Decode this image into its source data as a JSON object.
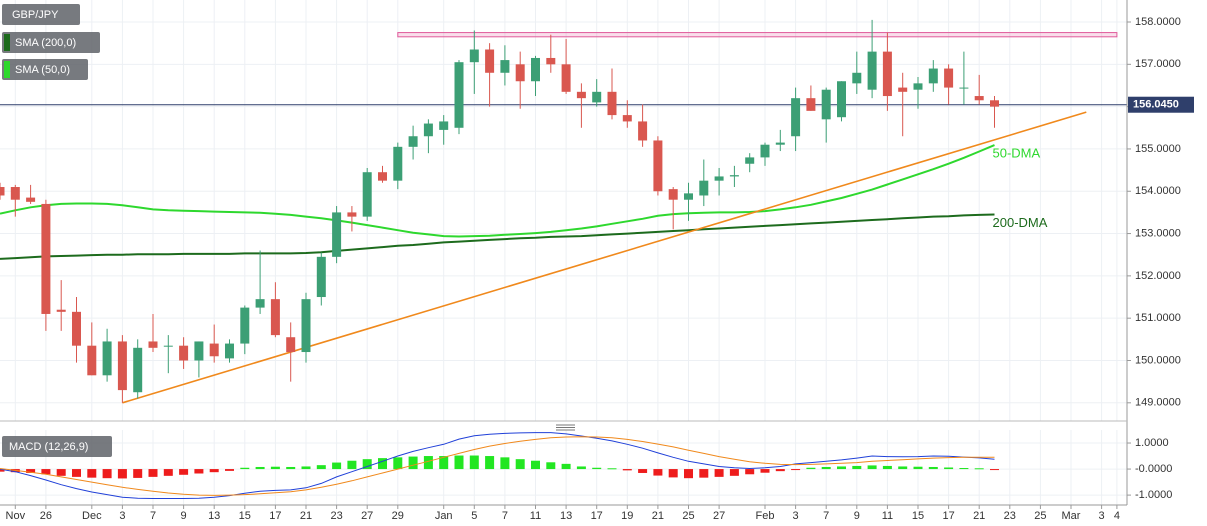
{
  "chart_data": {
    "type": "candlestick",
    "symbol": "GBP/JPY",
    "categories": [
      null,
      "Nov",
      null,
      "26",
      null,
      null,
      "Dec",
      null,
      "3",
      null,
      "7",
      null,
      "9",
      null,
      "13",
      null,
      "15",
      null,
      "17",
      null,
      "21",
      null,
      "23",
      null,
      "27",
      null,
      "29",
      null,
      null,
      "Jan",
      null,
      "5",
      null,
      "7",
      null,
      "11",
      null,
      "13",
      null,
      "17",
      null,
      "19",
      null,
      "21",
      null,
      "25",
      null,
      "27",
      null,
      null,
      "Feb",
      null,
      "3",
      null,
      "7",
      null,
      "9",
      null,
      "11",
      null,
      "15",
      null,
      "17",
      null,
      "21",
      null,
      "23",
      null,
      "25",
      null,
      "Mar",
      null,
      "3",
      "4"
    ],
    "open": [
      154.1,
      154.1,
      153.85,
      153.7,
      151.2,
      151.15,
      150.35,
      149.65,
      150.45,
      149.25,
      150.45,
      150.35,
      150.35,
      150.0,
      150.4,
      150.05,
      150.4,
      151.25,
      151.45,
      150.55,
      150.2,
      151.5,
      152.45,
      153.5,
      153.4,
      154.45,
      154.25,
      155.05,
      155.3,
      155.45,
      155.5,
      157.05,
      157.35,
      156.8,
      157.0,
      156.6,
      157.15,
      157.0,
      156.35,
      156.1,
      156.35,
      155.8,
      155.65,
      155.2,
      154.05,
      153.8,
      153.9,
      154.25,
      154.35,
      154.65,
      154.8,
      155.1,
      155.3,
      156.2,
      155.7,
      155.75,
      156.55,
      156.4,
      157.3,
      156.45,
      156.4,
      156.55,
      156.9,
      156.45,
      156.25,
      156.15,
      null,
      null,
      null,
      null,
      null,
      null,
      null,
      null
    ],
    "high": [
      154.2,
      154.15,
      154.15,
      153.8,
      151.9,
      151.5,
      150.9,
      150.75,
      150.6,
      150.5,
      151.1,
      150.6,
      150.55,
      150.45,
      150.85,
      150.5,
      151.3,
      152.6,
      151.85,
      150.9,
      151.6,
      152.55,
      153.65,
      153.65,
      154.55,
      154.6,
      155.15,
      155.55,
      155.7,
      155.8,
      157.1,
      157.8,
      157.5,
      157.45,
      157.3,
      157.2,
      157.7,
      157.6,
      156.55,
      156.65,
      156.9,
      156.15,
      156.05,
      155.3,
      154.1,
      154.2,
      154.75,
      154.55,
      154.6,
      154.9,
      155.15,
      155.45,
      156.45,
      156.5,
      156.45,
      156.6,
      157.3,
      158.05,
      157.75,
      156.8,
      156.7,
      157.1,
      157.0,
      157.3,
      156.75,
      156.25,
      null,
      null,
      null,
      null,
      null,
      null,
      null,
      null
    ],
    "low": [
      153.8,
      153.4,
      153.7,
      150.7,
      150.7,
      149.95,
      149.65,
      149.5,
      149.0,
      149.1,
      150.2,
      149.7,
      149.8,
      149.6,
      149.95,
      149.95,
      150.15,
      151.1,
      150.55,
      149.5,
      149.95,
      151.3,
      152.3,
      153.05,
      153.3,
      154.2,
      154.05,
      154.75,
      154.9,
      155.1,
      155.35,
      156.3,
      156.0,
      156.5,
      155.95,
      156.25,
      156.8,
      156.3,
      155.5,
      156.0,
      155.7,
      155.5,
      155.05,
      153.9,
      153.1,
      153.3,
      153.65,
      153.9,
      154.1,
      154.45,
      154.6,
      154.95,
      154.95,
      155.9,
      155.15,
      155.65,
      156.3,
      156.2,
      155.9,
      155.3,
      155.95,
      156.35,
      156.05,
      156.05,
      156.05,
      155.5,
      null,
      null,
      null,
      null,
      null,
      null,
      null,
      null
    ],
    "close": [
      153.9,
      153.8,
      153.75,
      151.1,
      151.15,
      150.35,
      149.65,
      150.45,
      149.3,
      150.3,
      150.3,
      150.35,
      150.0,
      150.45,
      150.1,
      150.4,
      151.25,
      151.45,
      150.6,
      150.2,
      151.45,
      152.45,
      153.5,
      153.4,
      154.45,
      154.25,
      155.05,
      155.3,
      155.6,
      155.65,
      157.05,
      157.35,
      156.8,
      157.1,
      156.6,
      157.15,
      157.0,
      156.35,
      156.2,
      156.35,
      155.8,
      155.65,
      155.2,
      154.0,
      153.8,
      153.95,
      154.25,
      154.35,
      154.38,
      154.8,
      155.1,
      155.15,
      156.2,
      155.9,
      156.4,
      156.6,
      156.8,
      157.3,
      156.25,
      156.35,
      156.55,
      156.9,
      156.45,
      156.45,
      156.15,
      156.0,
      null,
      null,
      null,
      null,
      null,
      null,
      null,
      null
    ],
    "up_color": "#3c9f75",
    "down_color": "#d9574f",
    "series": [
      {
        "name": "SMA (200,0)",
        "label": "200-DMA",
        "color": "#1d6b1d",
        "values": [
          152.4,
          152.42,
          152.44,
          152.46,
          152.47,
          152.48,
          152.49,
          152.5,
          152.5,
          152.51,
          152.51,
          152.51,
          152.52,
          152.52,
          152.52,
          152.52,
          152.53,
          152.53,
          152.53,
          152.53,
          152.54,
          152.56,
          152.59,
          152.62,
          152.65,
          152.68,
          152.71,
          152.73,
          152.76,
          152.79,
          152.81,
          152.83,
          152.85,
          152.87,
          152.89,
          152.9,
          152.92,
          152.93,
          152.94,
          152.96,
          152.98,
          153.0,
          153.02,
          153.04,
          153.06,
          153.08,
          153.1,
          153.12,
          153.14,
          153.16,
          153.18,
          153.2,
          153.22,
          153.24,
          153.26,
          153.28,
          153.3,
          153.32,
          153.34,
          153.36,
          153.38,
          153.4,
          153.41,
          153.43,
          153.44,
          153.45,
          null,
          null,
          null,
          null,
          null,
          null,
          null,
          null
        ]
      },
      {
        "name": "SMA (50,0)",
        "label": "50-DMA",
        "color": "#2ed82e",
        "values": [
          153.47,
          153.55,
          153.62,
          153.67,
          153.7,
          153.71,
          153.71,
          153.7,
          153.67,
          153.62,
          153.57,
          153.55,
          153.54,
          153.53,
          153.52,
          153.51,
          153.5,
          153.49,
          153.47,
          153.44,
          153.4,
          153.36,
          153.31,
          153.26,
          153.2,
          153.14,
          153.08,
          153.02,
          152.98,
          152.94,
          152.93,
          152.94,
          152.95,
          152.97,
          152.99,
          153.01,
          153.04,
          153.08,
          153.12,
          153.17,
          153.23,
          153.29,
          153.35,
          153.42,
          153.46,
          153.48,
          153.49,
          153.5,
          153.5,
          153.51,
          153.53,
          153.57,
          153.62,
          153.68,
          153.76,
          153.84,
          153.94,
          154.04,
          154.16,
          154.28,
          154.4,
          154.52,
          154.65,
          154.79,
          154.94,
          155.09,
          null,
          null,
          null,
          null,
          null,
          null,
          null,
          null
        ]
      }
    ],
    "ylim": [
      148.57,
      158.52
    ],
    "yticks": [
      {
        "value": 149,
        "label": "149.0000"
      },
      {
        "value": 150,
        "label": "150.0000"
      },
      {
        "value": 151,
        "label": "151.0000"
      },
      {
        "value": 152,
        "label": "152.0000"
      },
      {
        "value": 153,
        "label": "153.0000"
      },
      {
        "value": 154,
        "label": "154.0000"
      },
      {
        "value": 155,
        "label": "155.0000"
      },
      {
        "value": 156,
        "label": "156.0000"
      },
      {
        "value": 157,
        "label": "157.0000"
      },
      {
        "value": 158,
        "label": "158.0000"
      }
    ],
    "last_price": {
      "value": 156.045,
      "label": "156.0450",
      "color": "#2f3f6b"
    },
    "trendline": {
      "from": {
        "index": 8,
        "value": 149.0
      },
      "to": {
        "index": 71,
        "value": 155.87
      },
      "color": "#f0891c"
    },
    "resistance": {
      "from_index": 26,
      "to_index": 73,
      "low": 157.65,
      "high": 157.75,
      "color": "#e05a9a"
    },
    "grid": true,
    "macd": {
      "type": "macd",
      "name": "MACD (12,26,9)",
      "macd_color": "#2040d8",
      "signal_color": "#f0891c",
      "positive_color": "#22e622",
      "negative_color": "#ee1c1c",
      "macd": [
        0.0,
        -0.1,
        -0.25,
        -0.42,
        -0.6,
        -0.75,
        -0.88,
        -0.98,
        -1.08,
        -1.12,
        -1.13,
        -1.13,
        -1.13,
        -1.12,
        -1.08,
        -1.02,
        -0.93,
        -0.85,
        -0.82,
        -0.8,
        -0.72,
        -0.55,
        -0.3,
        -0.1,
        0.1,
        0.3,
        0.5,
        0.68,
        0.82,
        0.95,
        1.15,
        1.28,
        1.34,
        1.37,
        1.39,
        1.4,
        1.4,
        1.35,
        1.27,
        1.18,
        1.08,
        0.95,
        0.8,
        0.62,
        0.45,
        0.3,
        0.2,
        0.1,
        0.05,
        0.02,
        0.05,
        0.1,
        0.2,
        0.25,
        0.3,
        0.35,
        0.42,
        0.5,
        0.48,
        0.47,
        0.48,
        0.5,
        0.49,
        0.46,
        0.43,
        0.38,
        null,
        null,
        null,
        null,
        null,
        null,
        null,
        null
      ],
      "signal": [
        0.02,
        -0.05,
        -0.12,
        -0.2,
        -0.3,
        -0.4,
        -0.5,
        -0.6,
        -0.7,
        -0.78,
        -0.85,
        -0.92,
        -0.97,
        -1.0,
        -1.01,
        -1.0,
        -0.98,
        -0.95,
        -0.91,
        -0.87,
        -0.8,
        -0.7,
        -0.58,
        -0.45,
        -0.3,
        -0.15,
        0.0,
        0.15,
        0.3,
        0.45,
        0.6,
        0.75,
        0.88,
        0.98,
        1.07,
        1.14,
        1.2,
        1.23,
        1.24,
        1.23,
        1.2,
        1.14,
        1.06,
        0.96,
        0.85,
        0.72,
        0.6,
        0.48,
        0.38,
        0.28,
        0.22,
        0.18,
        0.17,
        0.18,
        0.2,
        0.22,
        0.25,
        0.3,
        0.33,
        0.36,
        0.39,
        0.42,
        0.44,
        0.45,
        0.45,
        0.45,
        null,
        null,
        null,
        null,
        null,
        null,
        null,
        null
      ],
      "histogram": [
        -0.1,
        -0.12,
        -0.15,
        -0.2,
        -0.26,
        -0.3,
        -0.33,
        -0.35,
        -0.36,
        -0.34,
        -0.3,
        -0.26,
        -0.22,
        -0.17,
        -0.12,
        -0.07,
        0.05,
        0.08,
        0.09,
        0.08,
        0.1,
        0.15,
        0.25,
        0.32,
        0.38,
        0.42,
        0.45,
        0.48,
        0.5,
        0.5,
        0.52,
        0.52,
        0.5,
        0.45,
        0.38,
        0.32,
        0.26,
        0.2,
        0.1,
        0.05,
        0.03,
        -0.05,
        -0.15,
        -0.25,
        -0.32,
        -0.35,
        -0.33,
        -0.3,
        -0.26,
        -0.2,
        -0.14,
        -0.08,
        -0.03,
        0.05,
        0.08,
        0.1,
        0.12,
        0.14,
        0.12,
        0.1,
        0.09,
        0.08,
        0.06,
        0.04,
        0.03,
        -0.03,
        null,
        null,
        null,
        null,
        null,
        null,
        null,
        null
      ],
      "ylim": [
        -1.38,
        1.5
      ],
      "yticks": [
        {
          "value": 1,
          "label": "1.0000"
        },
        {
          "value": 0,
          "label": "-0.0000"
        },
        {
          "value": -1,
          "label": "-1.0000"
        }
      ]
    }
  }
}
